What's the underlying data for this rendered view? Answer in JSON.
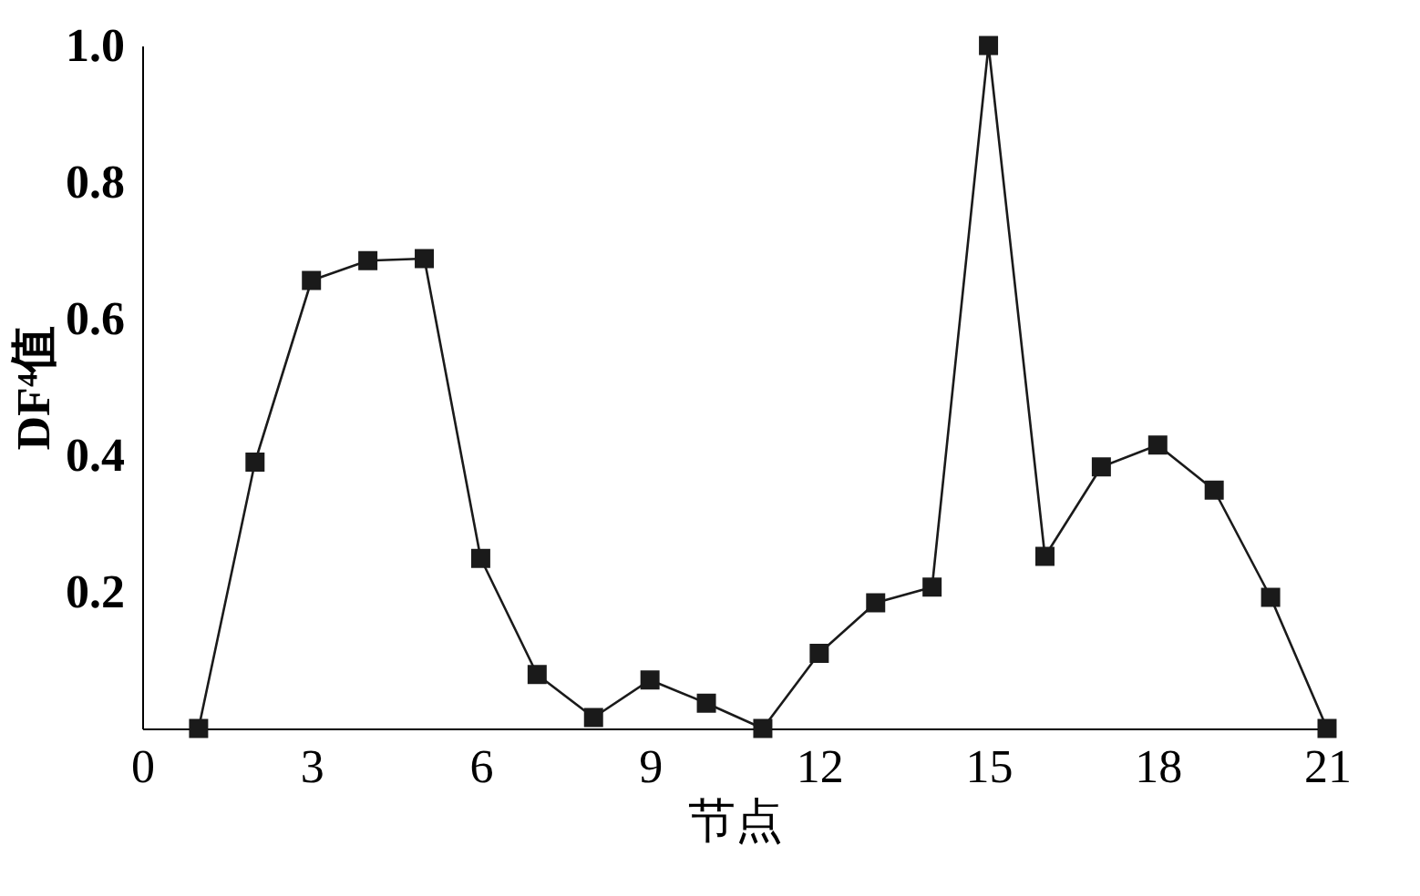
{
  "chart_data": {
    "type": "line",
    "xlabel": "节点",
    "ylabel": "DF⁴值",
    "x": [
      1,
      2,
      3,
      4,
      5,
      6,
      7,
      8,
      9,
      10,
      11,
      12,
      13,
      14,
      15,
      16,
      17,
      18,
      19,
      20,
      21
    ],
    "series": [
      {
        "color": "#1a1a1a",
        "values": [
          0,
          0.39,
          0.656,
          0.685,
          0.688,
          0.249,
          0.079,
          0.016,
          0.071,
          0.037,
          0,
          0.11,
          0.184,
          0.207,
          1.0,
          0.252,
          0.383,
          0.415,
          0.349,
          0.192,
          0
        ]
      }
    ],
    "xlim": [
      0,
      21
    ],
    "xticks": [
      0,
      3,
      6,
      9,
      12,
      15,
      18,
      21
    ],
    "ylim": [
      0,
      1.0
    ],
    "yticks": [
      0.2,
      0.4,
      0.6,
      0.8,
      {
        "value": 1.0,
        "label": "1.0"
      }
    ],
    "marker": "square",
    "line_style": "solid",
    "grid": false
  }
}
